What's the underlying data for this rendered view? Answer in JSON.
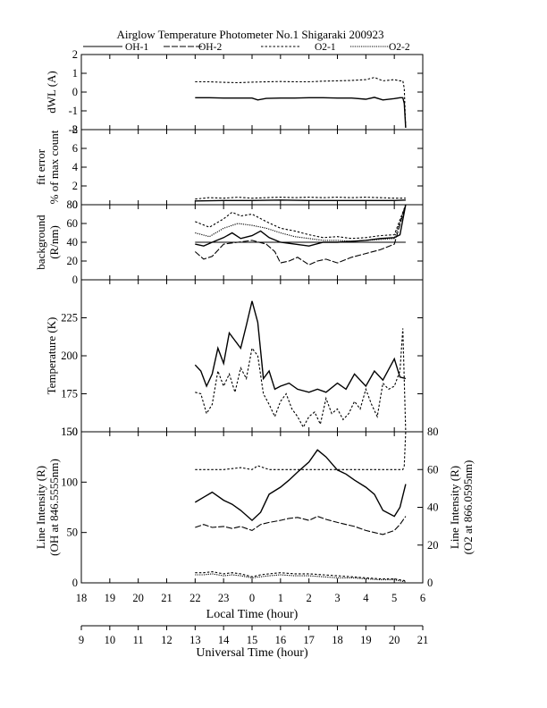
{
  "title": "Airglow Temperature Photometer No.1  Shigaraki  200923",
  "legend": [
    {
      "label": "OH-1",
      "dash": ""
    },
    {
      "label": "OH-2",
      "dash": "7,2"
    },
    {
      "label": "O2-1",
      "dash": "2.5,2"
    },
    {
      "label": "O2-2",
      "dash": "1.2,1.2"
    }
  ],
  "x_local": {
    "label": "Local Time (hour)",
    "range": [
      18,
      30
    ],
    "ticks": [
      18,
      19,
      20,
      21,
      22,
      23,
      24,
      25,
      26,
      27,
      28,
      29,
      30
    ],
    "tick_labels": [
      "18",
      "19",
      "20",
      "21",
      "22",
      "23",
      "0",
      "1",
      "2",
      "3",
      "4",
      "5",
      "6"
    ]
  },
  "x_ut": {
    "label": "Universal Time (hour)",
    "range": [
      9,
      21
    ],
    "ticks": [
      9,
      10,
      11,
      12,
      13,
      14,
      15,
      16,
      17,
      18,
      19,
      20,
      21
    ],
    "tick_labels": [
      "9",
      "10",
      "11",
      "12",
      "13",
      "14",
      "15",
      "16",
      "17",
      "18",
      "19",
      "20",
      "21"
    ]
  },
  "chart_data": [
    {
      "type": "line",
      "panel": "dwl",
      "ylabel": "dWL (A)",
      "ylim": [
        -2,
        2
      ],
      "yticks": [
        -2,
        -1,
        0,
        1,
        2
      ],
      "series": [
        {
          "name": "OH-1",
          "x": [
            22.0,
            22.5,
            23.0,
            23.5,
            24.0,
            24.2,
            24.5,
            25.0,
            25.5,
            26.0,
            26.5,
            27.0,
            27.5,
            28.0,
            28.3,
            28.6,
            29.0,
            29.2,
            29.3,
            29.35,
            29.4
          ],
          "y": [
            -0.3,
            -0.3,
            -0.32,
            -0.32,
            -0.32,
            -0.42,
            -0.34,
            -0.32,
            -0.32,
            -0.3,
            -0.3,
            -0.32,
            -0.32,
            -0.38,
            -0.28,
            -0.42,
            -0.35,
            -0.3,
            -0.3,
            -0.6,
            -1.9
          ]
        },
        {
          "name": "O2-1",
          "x": [
            22.0,
            22.5,
            23.0,
            23.5,
            24.0,
            24.5,
            25.0,
            25.5,
            26.0,
            26.5,
            27.0,
            27.5,
            28.0,
            28.3,
            28.6,
            29.0,
            29.2,
            29.3,
            29.35,
            29.4
          ],
          "y": [
            0.55,
            0.55,
            0.52,
            0.5,
            0.53,
            0.55,
            0.56,
            0.55,
            0.55,
            0.58,
            0.6,
            0.62,
            0.66,
            0.78,
            0.6,
            0.66,
            0.6,
            0.6,
            0.2,
            -1.9
          ]
        }
      ]
    },
    {
      "type": "line",
      "panel": "fit_error",
      "ylabel": "fit error",
      "ylabel2": "% of max count",
      "ylim": [
        0,
        8
      ],
      "yticks": [
        0,
        2,
        4,
        6,
        8
      ],
      "series": [
        {
          "name": "OH-1",
          "x": [
            22.0,
            23.0,
            24.0,
            25.0,
            26.0,
            27.0,
            28.0,
            29.0,
            29.4
          ],
          "y": [
            0.4,
            0.45,
            0.45,
            0.5,
            0.45,
            0.45,
            0.45,
            0.45,
            0.5
          ]
        },
        {
          "name": "O2-1",
          "x": [
            22.0,
            22.5,
            23.0,
            23.5,
            24.0,
            24.5,
            25.0,
            25.5,
            26.0,
            26.5,
            27.0,
            27.5,
            28.0,
            28.5,
            29.0,
            29.4
          ],
          "y": [
            0.6,
            0.75,
            0.7,
            0.8,
            0.7,
            0.75,
            0.8,
            0.75,
            0.8,
            0.75,
            0.8,
            0.75,
            0.8,
            0.75,
            0.7,
            0.7
          ]
        }
      ]
    },
    {
      "type": "line",
      "panel": "background",
      "ylabel": "background",
      "ylabel2": "(R/nm)",
      "ylim": [
        0,
        80
      ],
      "yticks": [
        0,
        20,
        40,
        60,
        80
      ],
      "series": [
        {
          "name": "OH-1",
          "x": [
            22.0,
            22.3,
            22.6,
            23.0,
            23.3,
            23.6,
            24.0,
            24.3,
            24.6,
            25.0,
            25.5,
            26.0,
            26.5,
            27.0,
            27.5,
            28.0,
            28.5,
            29.0,
            29.2,
            29.4
          ],
          "y": [
            38,
            36,
            40,
            45,
            50,
            44,
            47,
            52,
            45,
            40,
            38,
            36,
            40,
            40,
            41,
            42,
            44,
            45,
            48,
            80
          ]
        },
        {
          "name": "OH-2",
          "x": [
            22.0,
            22.3,
            22.6,
            23.0,
            23.5,
            24.0,
            24.5,
            24.8,
            25.0,
            25.3,
            25.6,
            26.0,
            26.3,
            26.6,
            27.0,
            27.5,
            28.0,
            28.5,
            29.0,
            29.4
          ],
          "y": [
            30,
            22,
            25,
            38,
            40,
            42,
            38,
            30,
            18,
            20,
            24,
            16,
            20,
            22,
            18,
            24,
            28,
            32,
            38,
            80
          ]
        },
        {
          "name": "O2-1",
          "x": [
            22.0,
            22.5,
            23.0,
            23.3,
            23.6,
            24.0,
            24.5,
            25.0,
            25.5,
            26.0,
            26.5,
            27.0,
            27.5,
            28.0,
            28.5,
            29.0,
            29.4
          ],
          "y": [
            62,
            56,
            65,
            72,
            68,
            70,
            62,
            55,
            52,
            48,
            45,
            46,
            44,
            45,
            47,
            48,
            80
          ]
        },
        {
          "name": "O2-2",
          "x": [
            22.0,
            22.5,
            23.0,
            23.5,
            24.0,
            24.5,
            25.0,
            25.5,
            26.0,
            26.5,
            27.0,
            27.5,
            28.0,
            28.5,
            29.0,
            29.4
          ],
          "y": [
            50,
            46,
            55,
            60,
            58,
            55,
            50,
            46,
            44,
            42,
            42,
            41,
            42,
            43,
            44,
            80
          ]
        },
        {
          "name": "",
          "x": [
            22.0,
            29.4
          ],
          "y": [
            40,
            40
          ]
        }
      ]
    },
    {
      "type": "line",
      "panel": "temperature",
      "ylabel": "Temperature (K)",
      "ylim": [
        150,
        250
      ],
      "yticks": [
        150,
        175,
        200,
        225
      ],
      "series": [
        {
          "name": "OH-1",
          "x": [
            22.0,
            22.2,
            22.4,
            22.6,
            22.8,
            23.0,
            23.2,
            23.4,
            23.6,
            23.8,
            24.0,
            24.2,
            24.4,
            24.6,
            24.8,
            25.0,
            25.3,
            25.6,
            26.0,
            26.3,
            26.6,
            27.0,
            27.3,
            27.6,
            28.0,
            28.3,
            28.6,
            29.0,
            29.2,
            29.4
          ],
          "y": [
            194,
            190,
            180,
            188,
            205,
            195,
            215,
            210,
            205,
            220,
            236,
            222,
            185,
            190,
            178,
            180,
            182,
            178,
            176,
            178,
            176,
            182,
            178,
            188,
            180,
            190,
            184,
            198,
            186,
            185
          ]
        },
        {
          "name": "O2-1",
          "x": [
            22.0,
            22.2,
            22.4,
            22.6,
            22.8,
            23.0,
            23.2,
            23.4,
            23.6,
            23.8,
            24.0,
            24.2,
            24.4,
            24.6,
            24.8,
            25.0,
            25.2,
            25.4,
            25.6,
            25.8,
            26.0,
            26.2,
            26.4,
            26.6,
            26.8,
            27.0,
            27.2,
            27.4,
            27.6,
            27.8,
            28.0,
            28.2,
            28.4,
            28.6,
            28.8,
            29.0,
            29.2,
            29.3,
            29.4
          ],
          "y": [
            176,
            175,
            162,
            168,
            190,
            180,
            188,
            176,
            192,
            185,
            205,
            200,
            175,
            168,
            160,
            170,
            175,
            165,
            160,
            153,
            160,
            163,
            155,
            172,
            162,
            165,
            158,
            162,
            170,
            165,
            178,
            168,
            160,
            182,
            178,
            180,
            190,
            218,
            150
          ]
        }
      ]
    },
    {
      "type": "line",
      "panel": "line_intensity",
      "ylabel": "Line Intensity (R)",
      "ylabel2": "(OH at 846.5555nm)",
      "ylim": [
        0,
        150
      ],
      "yticks": [
        0,
        50,
        100,
        150
      ],
      "y2label": "Line Intensity (R)",
      "y2label2": "(O2 at 866.0595nm)",
      "y2lim": [
        0,
        80
      ],
      "y2ticks": [
        0,
        20,
        40,
        60,
        80
      ],
      "series": [
        {
          "name": "OH-1",
          "x": [
            22.0,
            22.3,
            22.6,
            23.0,
            23.3,
            23.6,
            24.0,
            24.3,
            24.6,
            25.0,
            25.3,
            25.6,
            26.0,
            26.3,
            26.6,
            27.0,
            27.3,
            27.6,
            28.0,
            28.3,
            28.6,
            29.0,
            29.2,
            29.4
          ],
          "y": [
            80,
            85,
            90,
            82,
            78,
            72,
            62,
            70,
            88,
            95,
            102,
            110,
            120,
            132,
            125,
            112,
            108,
            102,
            95,
            88,
            72,
            66,
            75,
            98
          ]
        },
        {
          "name": "OH-2",
          "x": [
            22.0,
            22.3,
            22.6,
            23.0,
            23.3,
            23.6,
            24.0,
            24.3,
            24.6,
            25.0,
            25.3,
            25.6,
            26.0,
            26.3,
            26.6,
            27.0,
            27.3,
            27.6,
            28.0,
            28.3,
            28.6,
            29.0,
            29.2,
            29.4
          ],
          "y": [
            55,
            58,
            55,
            56,
            54,
            56,
            52,
            58,
            60,
            62,
            64,
            65,
            62,
            66,
            63,
            60,
            58,
            56,
            52,
            50,
            48,
            52,
            58,
            66
          ]
        },
        {
          "name": "O2-1",
          "x": [
            22.0,
            22.3,
            22.6,
            23.0,
            23.3,
            23.6,
            24.0,
            24.3,
            24.6,
            25.0,
            25.5,
            26.0,
            26.5,
            27.0,
            27.5,
            28.0,
            28.5,
            29.0,
            29.4
          ],
          "y": [
            10,
            10,
            11,
            9,
            10,
            9,
            6,
            8,
            9,
            10,
            9,
            9,
            8,
            7,
            6,
            5,
            4,
            4,
            2
          ]
        },
        {
          "name": "O2-2",
          "x": [
            22.0,
            22.3,
            22.6,
            23.0,
            23.3,
            23.6,
            24.0,
            24.3,
            24.6,
            25.0,
            25.5,
            26.0,
            26.5,
            27.0,
            27.5,
            28.0,
            28.5,
            29.0,
            29.4
          ],
          "y": [
            8,
            8,
            9,
            7,
            8,
            7,
            5,
            6,
            7,
            8,
            7,
            7,
            6,
            5,
            5,
            4,
            3,
            3,
            1
          ]
        },
        {
          "name": "",
          "axis": "y2",
          "x": [
            22.0,
            22.6,
            23.0,
            23.6,
            24.0,
            24.2,
            24.6,
            25.0,
            26.0,
            27.0,
            28.0,
            29.0,
            29.3,
            29.35,
            29.4
          ],
          "y": [
            60,
            60,
            60,
            61,
            60,
            62,
            60,
            60,
            60,
            60,
            60,
            60,
            60,
            62,
            80
          ]
        }
      ]
    }
  ]
}
